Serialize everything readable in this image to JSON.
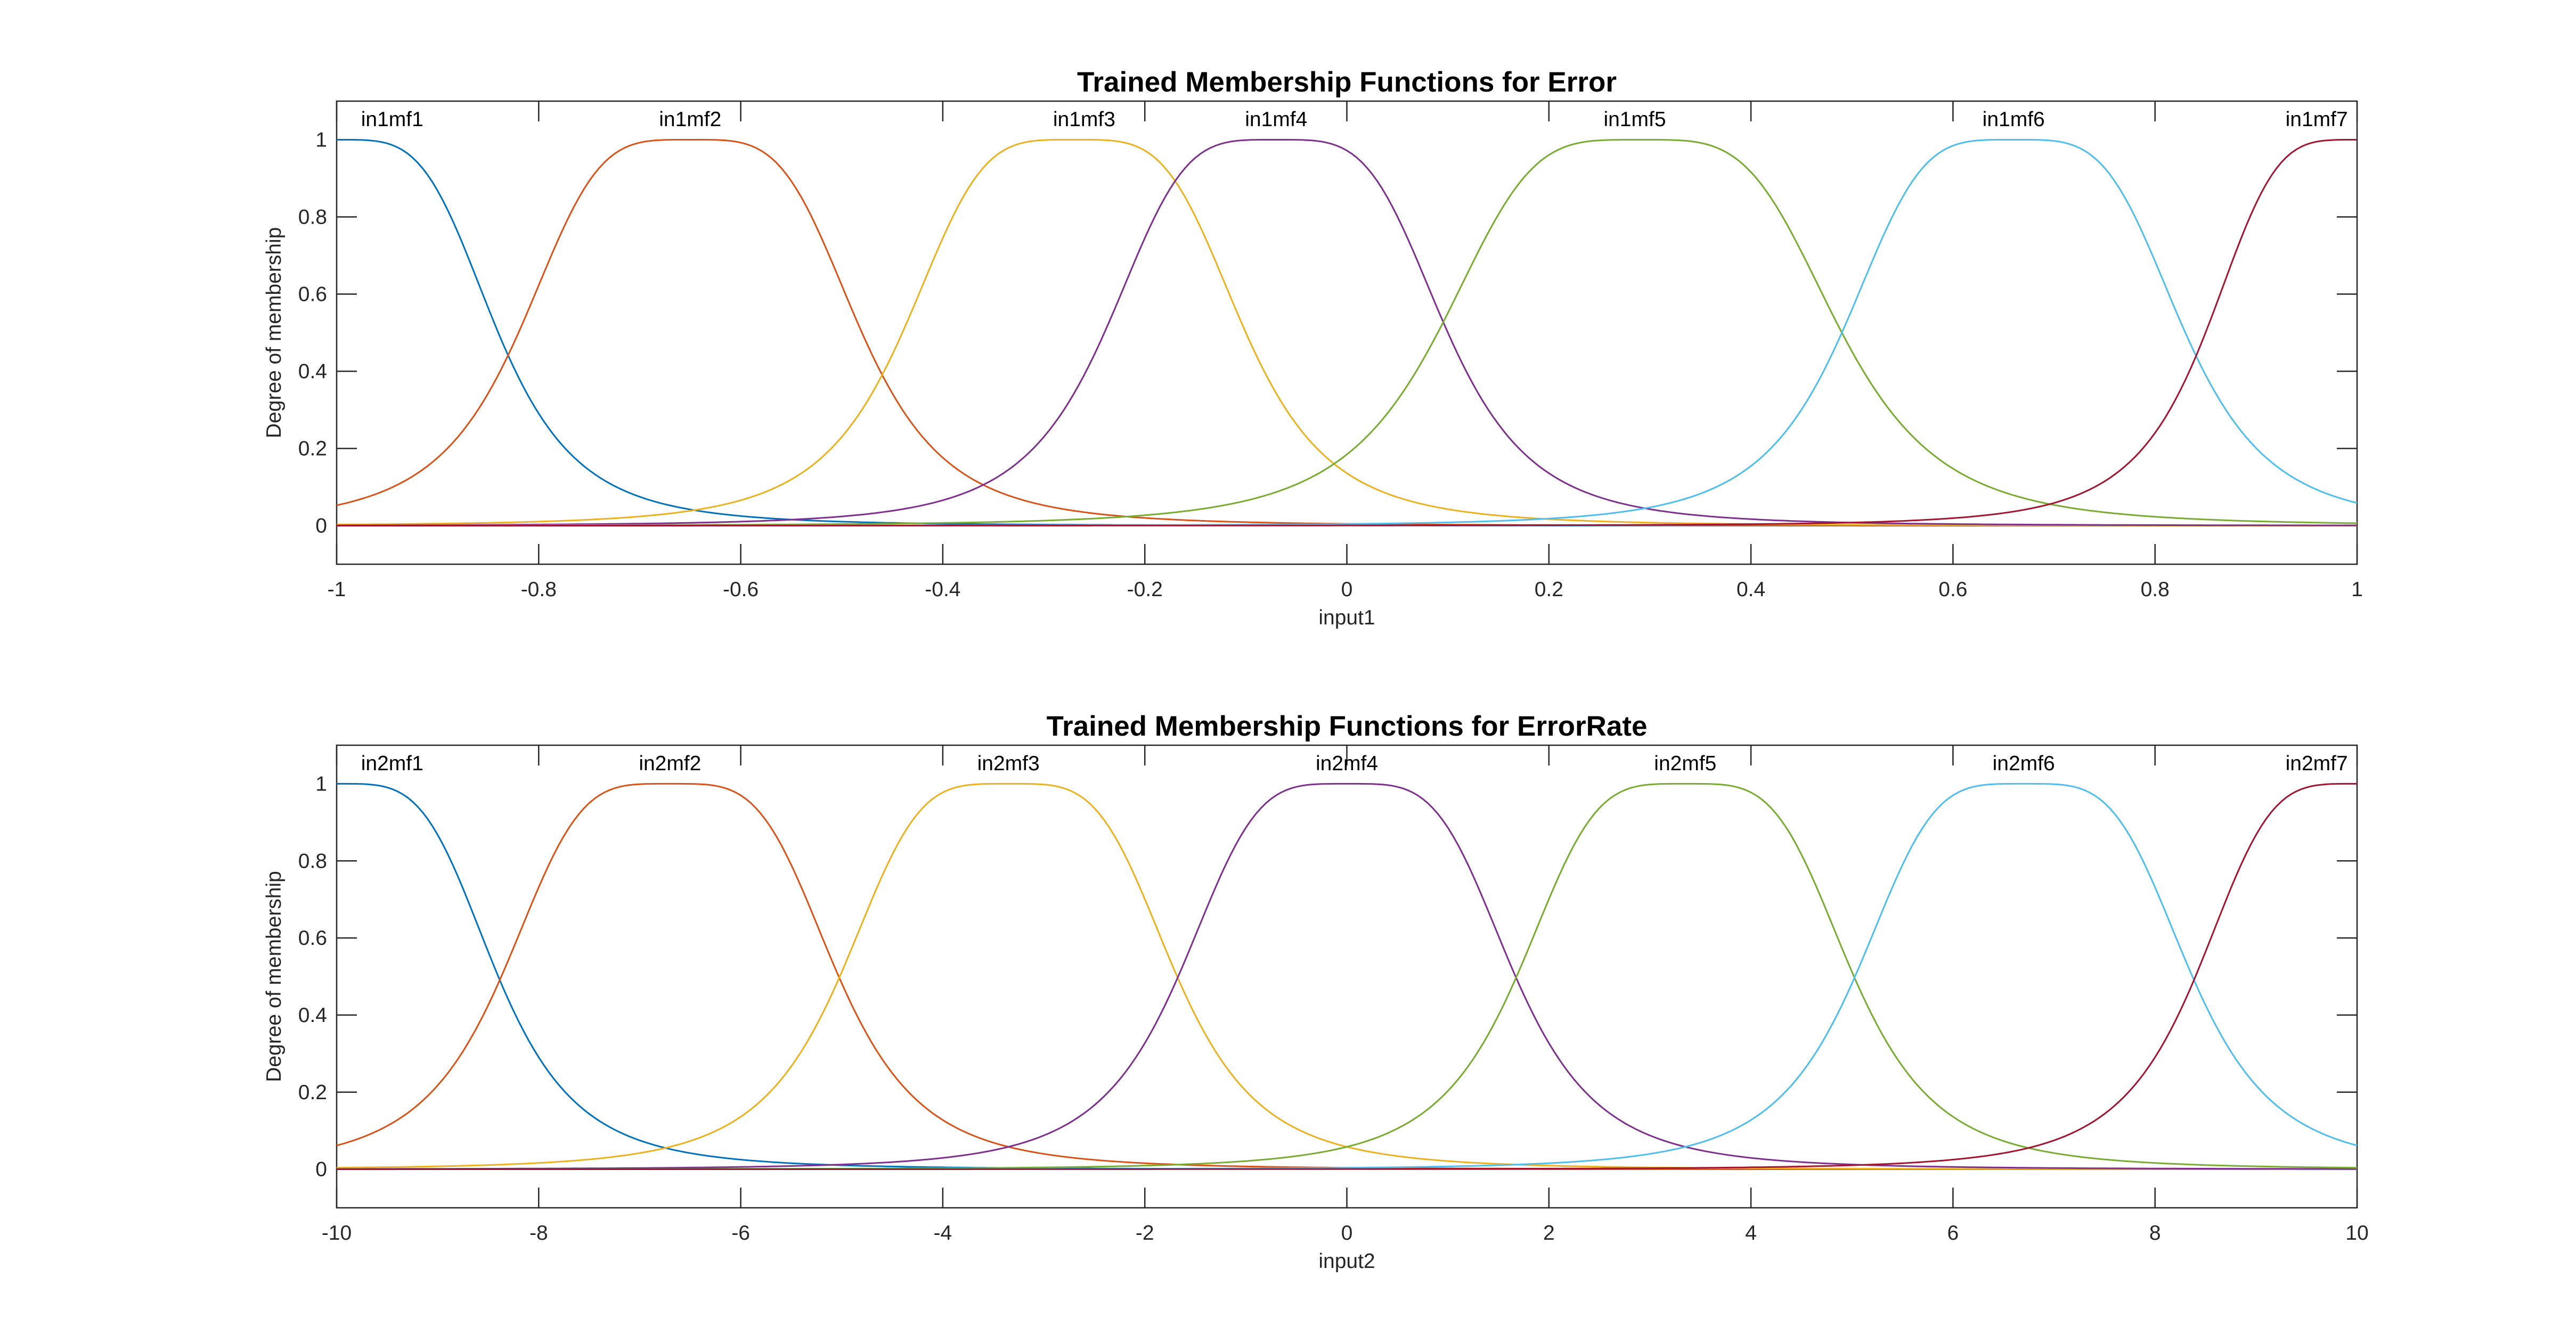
{
  "chart_data": [
    {
      "type": "line",
      "title": "Trained Membership Functions for Error",
      "xlabel": "input1",
      "ylabel": "Degree of membership",
      "xlim": [
        -1,
        1
      ],
      "ylim": [
        -0.1,
        1.1
      ],
      "xticks": [
        -1,
        -0.8,
        -0.6,
        -0.4,
        -0.2,
        0,
        0.2,
        0.4,
        0.6,
        0.8,
        1
      ],
      "yticks": [
        0,
        0.2,
        0.4,
        0.6,
        0.8,
        1
      ],
      "grid": false,
      "series": [
        {
          "name": "in1mf1",
          "color": "#0072BD",
          "center": -1.0,
          "halfwidth": 0.16,
          "slope": 2.0,
          "label_x": -0.945
        },
        {
          "name": "in1mf2",
          "color": "#D95319",
          "center": -0.65,
          "halfwidth": 0.17,
          "slope": 2.0,
          "label_x": -0.65
        },
        {
          "name": "in1mf3",
          "color": "#EDB120",
          "center": -0.27,
          "halfwidth": 0.17,
          "slope": 2.0,
          "label_x": -0.26
        },
        {
          "name": "in1mf4",
          "color": "#7E2F8E",
          "center": -0.07,
          "halfwidth": 0.17,
          "slope": 2.0,
          "label_x": -0.07
        },
        {
          "name": "in1mf5",
          "color": "#77AC30",
          "center": 0.29,
          "halfwidth": 0.2,
          "slope": 2.0,
          "label_x": 0.285
        },
        {
          "name": "in1mf6",
          "color": "#4DBEEE",
          "center": 0.66,
          "halfwidth": 0.17,
          "slope": 2.0,
          "label_x": 0.66
        },
        {
          "name": "in1mf7",
          "color": "#A2142F",
          "center": 1.0,
          "halfwidth": 0.15,
          "slope": 2.0,
          "label_x": 0.96
        }
      ]
    },
    {
      "type": "line",
      "title": "Trained Membership Functions for ErrorRate",
      "xlabel": "input2",
      "ylabel": "Degree of membership",
      "xlim": [
        -10,
        10
      ],
      "ylim": [
        -0.1,
        1.1
      ],
      "xticks": [
        -10,
        -8,
        -6,
        -4,
        -2,
        0,
        2,
        4,
        6,
        8,
        10
      ],
      "yticks": [
        0,
        0.2,
        0.4,
        0.6,
        0.8,
        1
      ],
      "grid": false,
      "series": [
        {
          "name": "in2mf1",
          "color": "#0072BD",
          "center": -10.0,
          "halfwidth": 1.6,
          "slope": 2.0,
          "label_x": -9.45
        },
        {
          "name": "in2mf2",
          "color": "#D95319",
          "center": -6.7,
          "halfwidth": 1.67,
          "slope": 2.0,
          "label_x": -6.7
        },
        {
          "name": "in2mf3",
          "color": "#EDB120",
          "center": -3.35,
          "halfwidth": 1.67,
          "slope": 2.0,
          "label_x": -3.35
        },
        {
          "name": "in2mf4",
          "color": "#7E2F8E",
          "center": 0.0,
          "halfwidth": 1.67,
          "slope": 2.0,
          "label_x": 0.0
        },
        {
          "name": "in2mf5",
          "color": "#77AC30",
          "center": 3.35,
          "halfwidth": 1.67,
          "slope": 2.0,
          "label_x": 3.35
        },
        {
          "name": "in2mf6",
          "color": "#4DBEEE",
          "center": 6.7,
          "halfwidth": 1.67,
          "slope": 2.0,
          "label_x": 6.7
        },
        {
          "name": "in2mf7",
          "color": "#A2142F",
          "center": 10.0,
          "halfwidth": 1.6,
          "slope": 2.0,
          "label_x": 9.6
        }
      ]
    }
  ]
}
